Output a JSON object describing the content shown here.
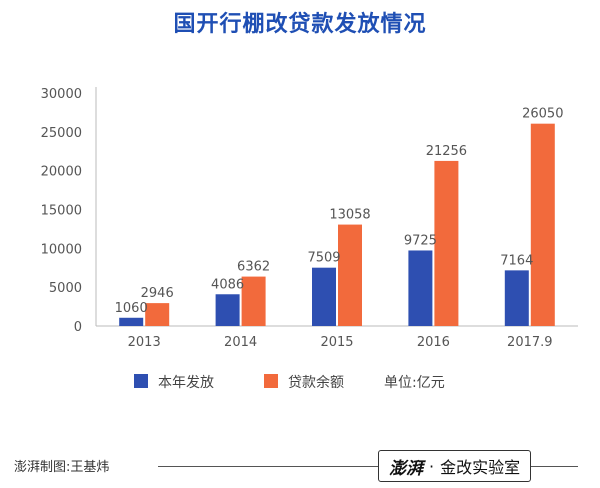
{
  "chart_data": {
    "type": "bar",
    "title": "国开行棚改贷款发放情况",
    "categories": [
      "2013",
      "2014",
      "2015",
      "2016",
      "2017.9"
    ],
    "series": [
      {
        "name": "本年发放",
        "values": [
          1060,
          4086,
          7509,
          9725,
          7164
        ],
        "color": "#2e4fb1"
      },
      {
        "name": "贷款余额",
        "values": [
          2946,
          6362,
          13058,
          21256,
          26050
        ],
        "color": "#f26a3c"
      }
    ],
    "unit_note": "单位:亿元",
    "ylim": [
      0,
      30000
    ],
    "yticks": [
      "0",
      "5000",
      "10000",
      "15000",
      "20000",
      "25000",
      "30000"
    ],
    "grid": false,
    "legend_position": "bottom"
  },
  "footer": {
    "credit": "澎湃制图:王基炜",
    "brand_logo": "澎湃",
    "brand_separator": "·",
    "brand_name": "金改实验室"
  }
}
